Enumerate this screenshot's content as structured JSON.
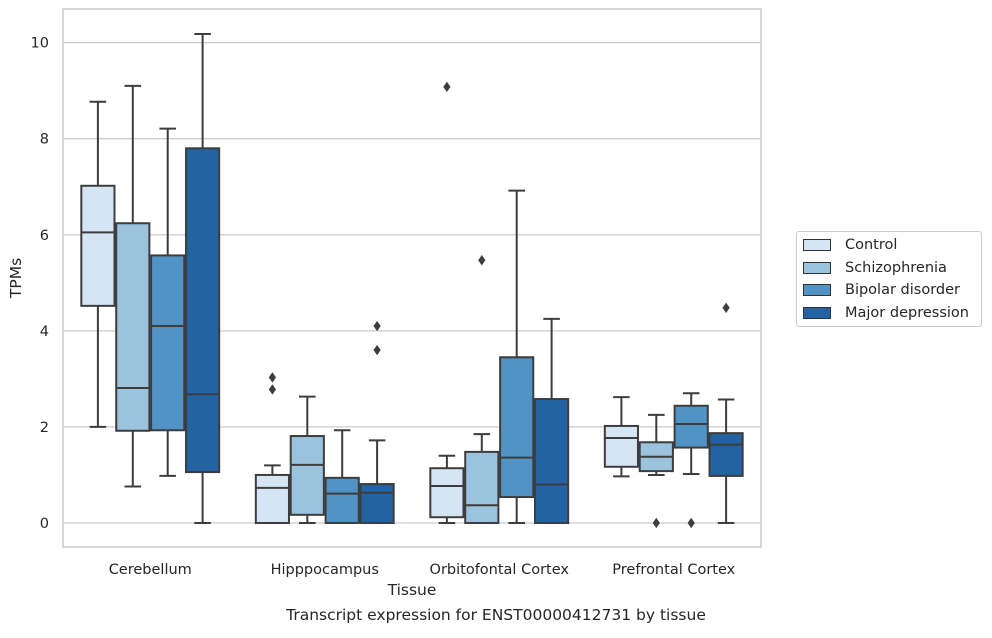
{
  "caption": "Transcript expression for ENST00000412731 by tissue",
  "chart_data": {
    "type": "box",
    "xlabel": "Tissue",
    "ylabel": "TPMs",
    "ylim": [
      -0.5,
      10.7
    ],
    "yticks": [
      0,
      2,
      4,
      6,
      8,
      10
    ],
    "grid": "horizontal",
    "legend_position": "right",
    "categories": [
      "Cerebellum",
      "Hipppocampus",
      "Orbitofontal Cortex",
      "Prefrontal Cortex"
    ],
    "series": [
      {
        "name": "Control",
        "color": "#d6e5f3",
        "boxes": [
          {
            "whislo": 2.0,
            "q1": 4.52,
            "med": 6.05,
            "q3": 7.02,
            "whishi": 8.77,
            "fliers": []
          },
          {
            "whislo": 0.0,
            "q1": 0.0,
            "med": 0.73,
            "q3": 1.0,
            "whishi": 1.2,
            "fliers": [
              2.78,
              3.03
            ]
          },
          {
            "whislo": 0.0,
            "q1": 0.12,
            "med": 0.77,
            "q3": 1.14,
            "whishi": 1.4,
            "fliers": [
              9.08
            ]
          },
          {
            "whislo": 0.97,
            "q1": 1.17,
            "med": 1.77,
            "q3": 2.02,
            "whishi": 2.62,
            "fliers": []
          }
        ]
      },
      {
        "name": "Schizophrenia",
        "color": "#9cc3dd",
        "boxes": [
          {
            "whislo": 0.76,
            "q1": 1.92,
            "med": 2.81,
            "q3": 6.24,
            "whishi": 9.1,
            "fliers": []
          },
          {
            "whislo": 0.0,
            "q1": 0.17,
            "med": 1.21,
            "q3": 1.81,
            "whishi": 2.63,
            "fliers": []
          },
          {
            "whislo": 0.0,
            "q1": 0.0,
            "med": 0.37,
            "q3": 1.48,
            "whishi": 1.85,
            "fliers": [
              5.47
            ]
          },
          {
            "whislo": 1.0,
            "q1": 1.08,
            "med": 1.38,
            "q3": 1.68,
            "whishi": 2.25,
            "fliers": [
              0.0
            ]
          }
        ]
      },
      {
        "name": "Bipolar disorder",
        "color": "#5093c4",
        "boxes": [
          {
            "whislo": 0.98,
            "q1": 1.93,
            "med": 4.1,
            "q3": 5.57,
            "whishi": 8.21,
            "fliers": []
          },
          {
            "whislo": 0.0,
            "q1": 0.0,
            "med": 0.61,
            "q3": 0.94,
            "whishi": 1.93,
            "fliers": []
          },
          {
            "whislo": 0.0,
            "q1": 0.54,
            "med": 1.36,
            "q3": 3.45,
            "whishi": 6.92,
            "fliers": []
          },
          {
            "whislo": 1.02,
            "q1": 1.57,
            "med": 2.06,
            "q3": 2.44,
            "whishi": 2.7,
            "fliers": [
              0.0
            ]
          }
        ]
      },
      {
        "name": "Major depression",
        "color": "#2363a3",
        "boxes": [
          {
            "whislo": 0.0,
            "q1": 1.06,
            "med": 2.68,
            "q3": 7.8,
            "whishi": 10.18,
            "fliers": []
          },
          {
            "whislo": 0.0,
            "q1": 0.0,
            "med": 0.63,
            "q3": 0.81,
            "whishi": 1.72,
            "fliers": [
              3.6,
              4.1
            ]
          },
          {
            "whislo": 0.0,
            "q1": 0.0,
            "med": 0.8,
            "q3": 2.58,
            "whishi": 4.25,
            "fliers": []
          },
          {
            "whislo": 0.0,
            "q1": 0.98,
            "med": 1.63,
            "q3": 1.87,
            "whishi": 2.57,
            "fliers": [
              4.48
            ]
          }
        ]
      }
    ]
  }
}
